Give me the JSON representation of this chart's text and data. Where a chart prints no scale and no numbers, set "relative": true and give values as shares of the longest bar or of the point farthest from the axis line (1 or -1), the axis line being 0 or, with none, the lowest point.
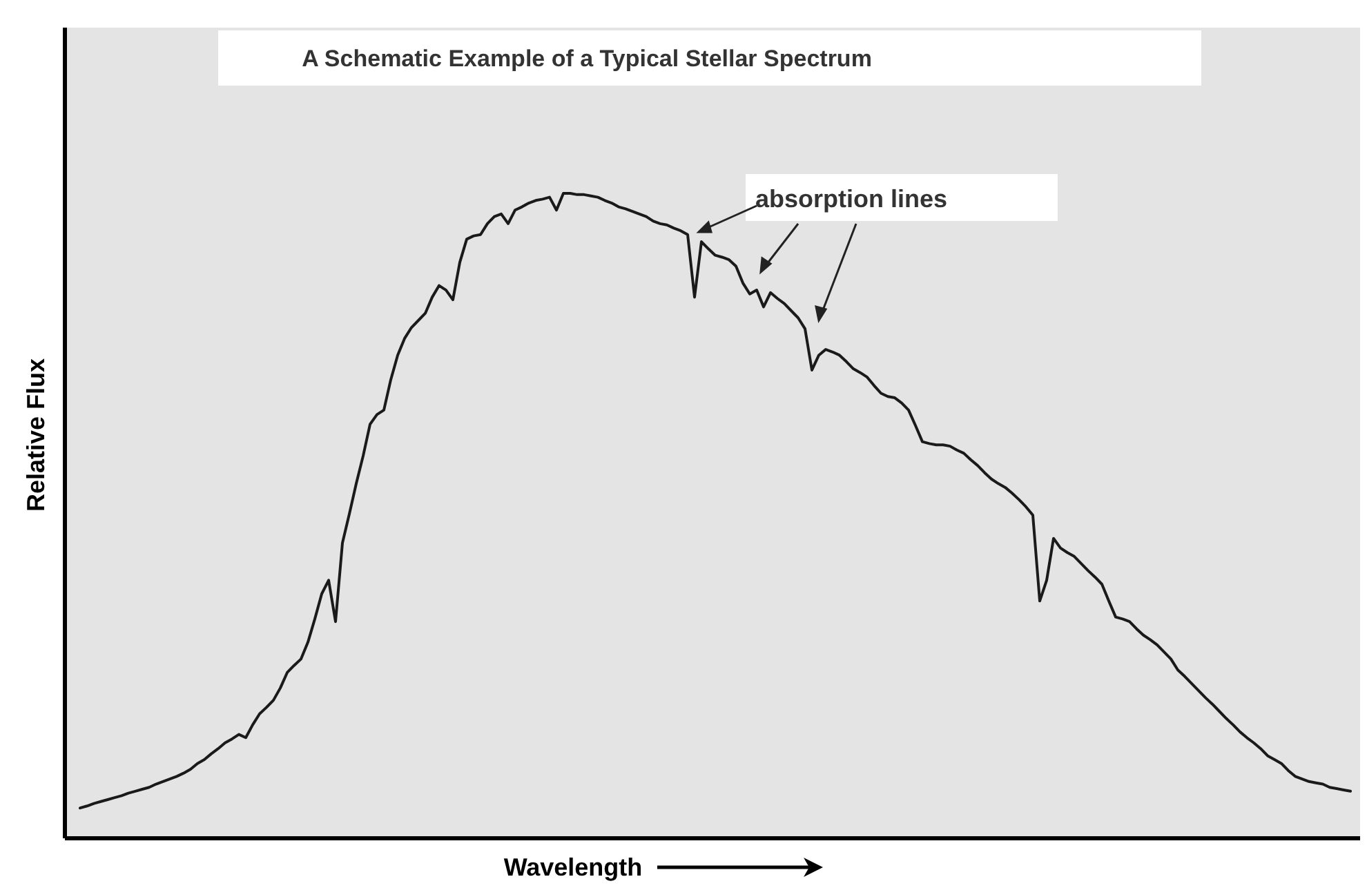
{
  "chart_data": {
    "type": "line",
    "title": "A Schematic Example of a Typical Stellar Spectrum",
    "xlabel": "Wavelength",
    "ylabel": "Relative Flux",
    "annotations": [
      "absorption lines"
    ],
    "relative": true,
    "color": "#1a1a1a",
    "categories": [
      null,
      null,
      null,
      null,
      null,
      null,
      null,
      null,
      null,
      null,
      null,
      null,
      null,
      null,
      null,
      null,
      null,
      null,
      null,
      null,
      null,
      null,
      null,
      null,
      null,
      null,
      null,
      null,
      null,
      null,
      null,
      null,
      null,
      null,
      null,
      null,
      null,
      null,
      null,
      null,
      null,
      null,
      null,
      null,
      null,
      null,
      null,
      null,
      null,
      null,
      null,
      null,
      null,
      null,
      null,
      null,
      null,
      null,
      null,
      null,
      null,
      null,
      null,
      null,
      null,
      null,
      null,
      null,
      null,
      null,
      null,
      null,
      null,
      null,
      null,
      null,
      null,
      null,
      null,
      null,
      null,
      null,
      null,
      null,
      null,
      null,
      null,
      null,
      null,
      null,
      null,
      null,
      null,
      null,
      null,
      null,
      null,
      null,
      null,
      null,
      null,
      null,
      null,
      null,
      null,
      null,
      null,
      null,
      null,
      null,
      null,
      null,
      null,
      null,
      null,
      null,
      null,
      null,
      null,
      null,
      null,
      null,
      null,
      null,
      null,
      null,
      null,
      null,
      null,
      null,
      null,
      null,
      null,
      null,
      null,
      null,
      null,
      null,
      null,
      null,
      null,
      null,
      null,
      null,
      null,
      null,
      null,
      null,
      null,
      null,
      null,
      null,
      null,
      null,
      null,
      null,
      null,
      null,
      null,
      null,
      null,
      null,
      null,
      null,
      null,
      null,
      null,
      null,
      null,
      null,
      null,
      null,
      null,
      null,
      null,
      null,
      null,
      null,
      null,
      null,
      null,
      null,
      null,
      null,
      null
    ],
    "values": [
      0.047,
      0.05,
      0.054,
      0.057,
      0.06,
      0.063,
      0.066,
      0.07,
      0.073,
      0.076,
      0.079,
      0.084,
      0.088,
      0.092,
      0.096,
      0.101,
      0.107,
      0.116,
      0.122,
      0.131,
      0.139,
      0.148,
      0.154,
      0.161,
      0.156,
      0.176,
      0.193,
      0.203,
      0.214,
      0.233,
      0.257,
      0.268,
      0.278,
      0.304,
      0.34,
      0.379,
      0.4,
      0.336,
      0.458,
      0.503,
      0.55,
      0.593,
      0.642,
      0.657,
      0.664,
      0.711,
      0.749,
      0.775,
      0.792,
      0.803,
      0.814,
      0.839,
      0.857,
      0.85,
      0.835,
      0.893,
      0.929,
      0.934,
      0.936,
      0.953,
      0.964,
      0.968,
      0.953,
      0.974,
      0.979,
      0.985,
      0.989,
      0.991,
      0.994,
      0.974,
      1,
      1,
      0.998,
      0.998,
      0.996,
      0.994,
      0.989,
      0.985,
      0.979,
      0.976,
      0.972,
      0.968,
      0.964,
      0.957,
      0.953,
      0.951,
      0.946,
      0.942,
      0.936,
      0.839,
      0.925,
      0.914,
      0.904,
      0.901,
      0.897,
      0.887,
      0.861,
      0.844,
      0.85,
      0.824,
      0.846,
      0.837,
      0.829,
      0.818,
      0.807,
      0.79,
      0.726,
      0.749,
      0.758,
      0.754,
      0.749,
      0.739,
      0.728,
      0.722,
      0.715,
      0.702,
      0.69,
      0.685,
      0.683,
      0.675,
      0.664,
      0.64,
      0.615,
      0.612,
      0.61,
      0.61,
      0.608,
      0.602,
      0.597,
      0.587,
      0.578,
      0.567,
      0.557,
      0.55,
      0.544,
      0.535,
      0.525,
      0.514,
      0.501,
      0.368,
      0.4,
      0.465,
      0.45,
      0.443,
      0.437,
      0.426,
      0.415,
      0.405,
      0.394,
      0.368,
      0.343,
      0.34,
      0.336,
      0.325,
      0.315,
      0.308,
      0.3,
      0.289,
      0.278,
      0.261,
      0.251,
      0.24,
      0.229,
      0.218,
      0.208,
      0.197,
      0.186,
      0.176,
      0.165,
      0.156,
      0.148,
      0.139,
      0.128,
      0.122,
      0.116,
      0.105,
      0.096,
      0.092,
      0.088,
      0.086,
      0.084,
      0.079,
      0.077,
      0.075,
      0.073
    ]
  }
}
